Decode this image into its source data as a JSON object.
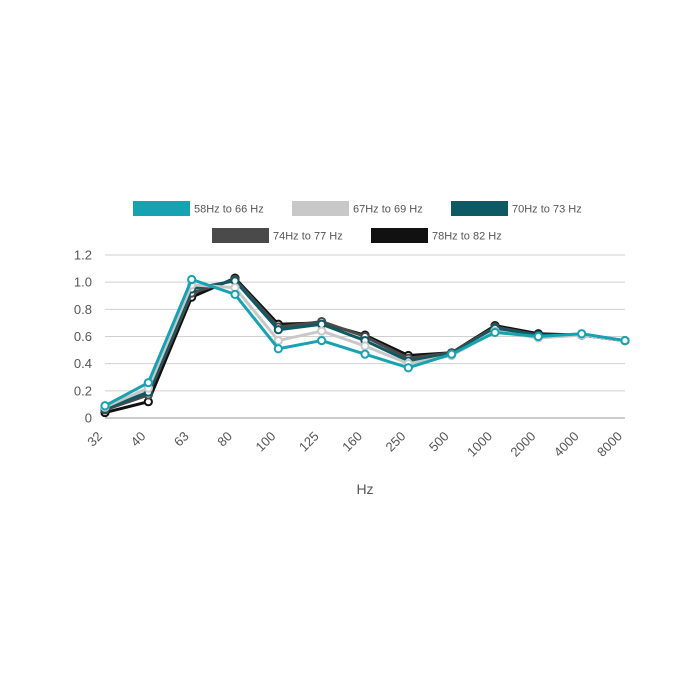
{
  "chart_data": {
    "type": "line",
    "title": "",
    "xlabel": "Hz",
    "ylabel": "",
    "categories": [
      "32",
      "40",
      "63",
      "80",
      "100",
      "125",
      "160",
      "250",
      "500",
      "1000",
      "2000",
      "4000",
      "8000"
    ],
    "ylim": [
      0,
      1.2
    ],
    "yticks": [
      "0",
      "0.2",
      "0.4",
      "0.6",
      "0.8",
      "1.0",
      "1.2"
    ],
    "grid": true,
    "legend_position": "top",
    "series": [
      {
        "name": "78Hz to 82 Hz",
        "color": "#111111",
        "values": [
          0.04,
          0.12,
          0.89,
          1.03,
          0.69,
          0.7,
          0.61,
          0.46,
          0.48,
          0.68,
          0.62,
          0.61,
          0.57
        ]
      },
      {
        "name": "74Hz to 77 Hz",
        "color": "#4a4a4a",
        "values": [
          0.06,
          0.17,
          0.92,
          1.02,
          0.67,
          0.71,
          0.6,
          0.44,
          0.48,
          0.67,
          0.61,
          0.61,
          0.57
        ]
      },
      {
        "name": "70Hz to 73 Hz",
        "color": "#0e5a64",
        "values": [
          0.07,
          0.19,
          0.95,
          1.01,
          0.65,
          0.69,
          0.57,
          0.42,
          0.47,
          0.66,
          0.61,
          0.61,
          0.57
        ]
      },
      {
        "name": "67Hz to 69 Hz",
        "color": "#c8c8c8",
        "values": [
          0.08,
          0.22,
          0.98,
          0.96,
          0.57,
          0.64,
          0.53,
          0.4,
          0.46,
          0.64,
          0.59,
          0.61,
          0.57
        ]
      },
      {
        "name": "58Hz to 66 Hz",
        "color": "#17a2b2",
        "values": [
          0.09,
          0.26,
          1.02,
          0.91,
          0.51,
          0.57,
          0.47,
          0.37,
          0.47,
          0.63,
          0.6,
          0.62,
          0.57
        ]
      }
    ],
    "legend": [
      {
        "name": "58Hz to 66 Hz",
        "color": "#17a2b2"
      },
      {
        "name": "67Hz to 69 Hz",
        "color": "#c8c8c8"
      },
      {
        "name": "70Hz to 73 Hz",
        "color": "#0e5a64"
      },
      {
        "name": "74Hz to 77 Hz",
        "color": "#4a4a4a"
      },
      {
        "name": "78Hz to 82 Hz",
        "color": "#111111"
      }
    ]
  }
}
